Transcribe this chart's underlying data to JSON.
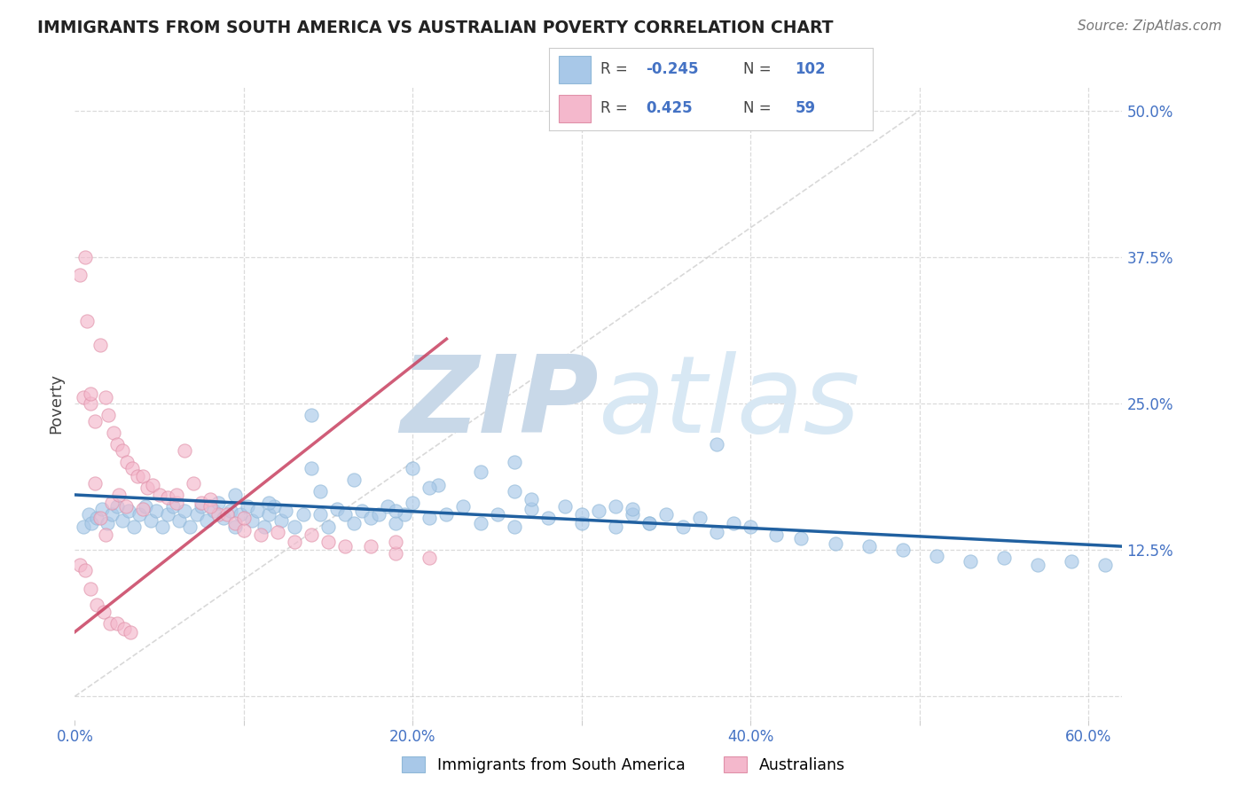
{
  "title": "IMMIGRANTS FROM SOUTH AMERICA VS AUSTRALIAN POVERTY CORRELATION CHART",
  "source_text": "Source: ZipAtlas.com",
  "ylabel": "Poverty",
  "xlim": [
    0.0,
    0.62
  ],
  "ylim": [
    -0.02,
    0.52
  ],
  "ytick_positions": [
    0.0,
    0.125,
    0.25,
    0.375,
    0.5
  ],
  "ytick_labels": [
    "",
    "12.5%",
    "25.0%",
    "37.5%",
    "50.0%"
  ],
  "xtick_positions": [
    0.0,
    0.1,
    0.2,
    0.3,
    0.4,
    0.5,
    0.6
  ],
  "xtick_labels": [
    "0.0%",
    "",
    "20.0%",
    "",
    "40.0%",
    "",
    "60.0%"
  ],
  "blue_scatter_color": "#a8c8e8",
  "pink_scatter_color": "#f4b8cc",
  "blue_line_color": "#2060a0",
  "pink_line_color": "#c8406080",
  "pink_line_color2": "#c84060",
  "grid_color": "#cccccc",
  "diag_line_color": "#cccccc",
  "watermark_color": "#d4e4f0",
  "legend_R1": "-0.245",
  "legend_N1": "102",
  "legend_R2": "0.425",
  "legend_N2": "59",
  "label_blue": "Immigrants from South America",
  "label_pink": "Australians",
  "title_color": "#222222",
  "axis_tick_color": "#4472c4",
  "blue_trend_x": [
    0.0,
    0.62
  ],
  "blue_trend_y": [
    0.172,
    0.128
  ],
  "pink_trend_x": [
    0.0,
    0.22
  ],
  "pink_trend_y": [
    0.055,
    0.305
  ],
  "blue_x": [
    0.005,
    0.008,
    0.01,
    0.013,
    0.016,
    0.019,
    0.022,
    0.025,
    0.028,
    0.032,
    0.035,
    0.038,
    0.042,
    0.045,
    0.048,
    0.052,
    0.055,
    0.058,
    0.062,
    0.065,
    0.068,
    0.072,
    0.075,
    0.078,
    0.082,
    0.085,
    0.088,
    0.092,
    0.095,
    0.098,
    0.102,
    0.105,
    0.108,
    0.112,
    0.115,
    0.118,
    0.122,
    0.125,
    0.13,
    0.135,
    0.14,
    0.145,
    0.15,
    0.155,
    0.16,
    0.165,
    0.17,
    0.175,
    0.18,
    0.185,
    0.19,
    0.195,
    0.2,
    0.21,
    0.22,
    0.23,
    0.24,
    0.25,
    0.26,
    0.27,
    0.28,
    0.29,
    0.3,
    0.31,
    0.32,
    0.33,
    0.34,
    0.35,
    0.36,
    0.37,
    0.38,
    0.39,
    0.4,
    0.415,
    0.43,
    0.45,
    0.47,
    0.49,
    0.51,
    0.53,
    0.55,
    0.57,
    0.59,
    0.61,
    0.14,
    0.215,
    0.27,
    0.33,
    0.095,
    0.115,
    0.19,
    0.21,
    0.38,
    0.24,
    0.26,
    0.3,
    0.34,
    0.26,
    0.2,
    0.165,
    0.145,
    0.32
  ],
  "blue_y": [
    0.145,
    0.155,
    0.148,
    0.152,
    0.16,
    0.148,
    0.155,
    0.162,
    0.15,
    0.158,
    0.145,
    0.155,
    0.162,
    0.15,
    0.158,
    0.145,
    0.155,
    0.162,
    0.15,
    0.158,
    0.145,
    0.155,
    0.162,
    0.15,
    0.158,
    0.165,
    0.152,
    0.158,
    0.145,
    0.155,
    0.162,
    0.15,
    0.158,
    0.145,
    0.155,
    0.162,
    0.15,
    0.158,
    0.145,
    0.155,
    0.24,
    0.155,
    0.145,
    0.16,
    0.155,
    0.148,
    0.158,
    0.152,
    0.155,
    0.162,
    0.148,
    0.155,
    0.165,
    0.152,
    0.155,
    0.162,
    0.148,
    0.155,
    0.145,
    0.16,
    0.152,
    0.162,
    0.148,
    0.158,
    0.145,
    0.155,
    0.148,
    0.155,
    0.145,
    0.152,
    0.14,
    0.148,
    0.145,
    0.138,
    0.135,
    0.13,
    0.128,
    0.125,
    0.12,
    0.115,
    0.118,
    0.112,
    0.115,
    0.112,
    0.195,
    0.18,
    0.168,
    0.16,
    0.172,
    0.165,
    0.158,
    0.178,
    0.215,
    0.192,
    0.175,
    0.155,
    0.148,
    0.2,
    0.195,
    0.185,
    0.175,
    0.162
  ],
  "pink_x": [
    0.005,
    0.007,
    0.009,
    0.012,
    0.015,
    0.018,
    0.02,
    0.023,
    0.025,
    0.028,
    0.031,
    0.034,
    0.037,
    0.04,
    0.043,
    0.046,
    0.05,
    0.055,
    0.06,
    0.065,
    0.07,
    0.075,
    0.08,
    0.085,
    0.09,
    0.095,
    0.1,
    0.11,
    0.12,
    0.13,
    0.14,
    0.15,
    0.16,
    0.175,
    0.19,
    0.21,
    0.003,
    0.006,
    0.009,
    0.013,
    0.017,
    0.021,
    0.025,
    0.029,
    0.033,
    0.003,
    0.006,
    0.009,
    0.012,
    0.015,
    0.018,
    0.022,
    0.026,
    0.03,
    0.04,
    0.06,
    0.08,
    0.1,
    0.19
  ],
  "pink_y": [
    0.255,
    0.32,
    0.25,
    0.235,
    0.3,
    0.255,
    0.24,
    0.225,
    0.215,
    0.21,
    0.2,
    0.195,
    0.188,
    0.188,
    0.178,
    0.18,
    0.172,
    0.17,
    0.165,
    0.21,
    0.182,
    0.165,
    0.168,
    0.155,
    0.155,
    0.148,
    0.142,
    0.138,
    0.14,
    0.132,
    0.138,
    0.132,
    0.128,
    0.128,
    0.122,
    0.118,
    0.112,
    0.108,
    0.092,
    0.078,
    0.072,
    0.062,
    0.062,
    0.058,
    0.055,
    0.36,
    0.375,
    0.258,
    0.182,
    0.152,
    0.138,
    0.165,
    0.172,
    0.162,
    0.16,
    0.172,
    0.162,
    0.152,
    0.132
  ]
}
